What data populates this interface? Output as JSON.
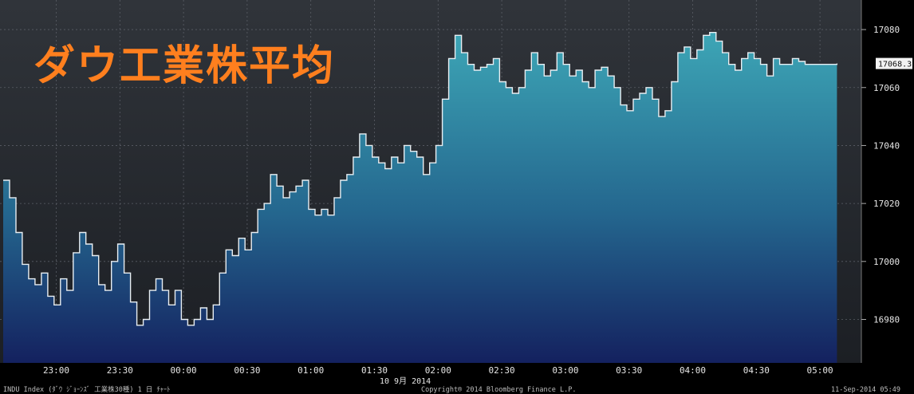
{
  "title": "ダウ工業株平均",
  "footer": {
    "left": "INDU Index (ﾀﾞｳ ｼﾞｮｰﾝｽﾞ 工業株30種) 1 日 ﾁｬｰﾄ",
    "center": "Copyright® 2014 Bloomberg Finance L.P.",
    "right": "11-Sep-2014 05:49",
    "date_label": "10 9月 2014"
  },
  "colors": {
    "title": "#ff7f1e",
    "line": "#e8eef2",
    "fill_top": "#3da6b6",
    "fill_bottom": "#14215f",
    "background": "#2c3036"
  },
  "chart_data": {
    "type": "area",
    "x_unit": "time (hh:mm)",
    "x_start": "22:35",
    "x_end": "05:15",
    "x_tick_labels": [
      "23:00",
      "23:30",
      "00:00",
      "00:30",
      "01:00",
      "01:30",
      "02:00",
      "02:30",
      "03:00",
      "03:30",
      "04:00",
      "04:30",
      "05:00"
    ],
    "ylim": [
      16965,
      17088
    ],
    "y_ticks": [
      16980,
      17000,
      17020,
      17040,
      17060,
      17080
    ],
    "last_value_label": "17068.3",
    "grid": true,
    "points": [
      [
        "22:35",
        17028
      ],
      [
        "22:38",
        17022
      ],
      [
        "22:41",
        17010
      ],
      [
        "22:44",
        16999
      ],
      [
        "22:47",
        16994
      ],
      [
        "22:50",
        16992
      ],
      [
        "22:53",
        16996
      ],
      [
        "22:56",
        16988
      ],
      [
        "22:59",
        16985
      ],
      [
        "23:02",
        16994
      ],
      [
        "23:05",
        16990
      ],
      [
        "23:08",
        17003
      ],
      [
        "23:11",
        17010
      ],
      [
        "23:14",
        17006
      ],
      [
        "23:17",
        17002
      ],
      [
        "23:20",
        16992
      ],
      [
        "23:23",
        16990
      ],
      [
        "23:26",
        17000
      ],
      [
        "23:29",
        17006
      ],
      [
        "23:32",
        16996
      ],
      [
        "23:35",
        16986
      ],
      [
        "23:38",
        16978
      ],
      [
        "23:41",
        16980
      ],
      [
        "23:44",
        16990
      ],
      [
        "23:47",
        16994
      ],
      [
        "23:50",
        16990
      ],
      [
        "23:53",
        16985
      ],
      [
        "23:56",
        16990
      ],
      [
        "23:59",
        16980
      ],
      [
        "00:02",
        16978
      ],
      [
        "00:05",
        16980
      ],
      [
        "00:08",
        16984
      ],
      [
        "00:11",
        16980
      ],
      [
        "00:14",
        16985
      ],
      [
        "00:17",
        16996
      ],
      [
        "00:20",
        17004
      ],
      [
        "00:23",
        17002
      ],
      [
        "00:26",
        17008
      ],
      [
        "00:29",
        17004
      ],
      [
        "00:32",
        17010
      ],
      [
        "00:35",
        17018
      ],
      [
        "00:38",
        17020
      ],
      [
        "00:41",
        17030
      ],
      [
        "00:44",
        17026
      ],
      [
        "00:47",
        17022
      ],
      [
        "00:50",
        17024
      ],
      [
        "00:53",
        17026
      ],
      [
        "00:56",
        17028
      ],
      [
        "00:59",
        17018
      ],
      [
        "01:02",
        17016
      ],
      [
        "01:05",
        17018
      ],
      [
        "01:08",
        17016
      ],
      [
        "01:11",
        17022
      ],
      [
        "01:14",
        17028
      ],
      [
        "01:17",
        17030
      ],
      [
        "01:20",
        17036
      ],
      [
        "01:23",
        17044
      ],
      [
        "01:26",
        17040
      ],
      [
        "01:29",
        17036
      ],
      [
        "01:32",
        17034
      ],
      [
        "01:35",
        17032
      ],
      [
        "01:38",
        17036
      ],
      [
        "01:41",
        17034
      ],
      [
        "01:44",
        17040
      ],
      [
        "01:47",
        17038
      ],
      [
        "01:50",
        17036
      ],
      [
        "01:53",
        17030
      ],
      [
        "01:56",
        17034
      ],
      [
        "01:59",
        17040
      ],
      [
        "02:02",
        17056
      ],
      [
        "02:05",
        17070
      ],
      [
        "02:08",
        17078
      ],
      [
        "02:11",
        17072
      ],
      [
        "02:14",
        17068
      ],
      [
        "02:17",
        17066
      ],
      [
        "02:20",
        17067
      ],
      [
        "02:23",
        17068
      ],
      [
        "02:26",
        17070
      ],
      [
        "02:29",
        17062
      ],
      [
        "02:32",
        17060
      ],
      [
        "02:35",
        17058
      ],
      [
        "02:38",
        17060
      ],
      [
        "02:41",
        17066
      ],
      [
        "02:44",
        17072
      ],
      [
        "02:47",
        17068
      ],
      [
        "02:50",
        17064
      ],
      [
        "02:53",
        17066
      ],
      [
        "02:56",
        17072
      ],
      [
        "02:59",
        17068
      ],
      [
        "03:02",
        17064
      ],
      [
        "03:05",
        17066
      ],
      [
        "03:08",
        17062
      ],
      [
        "03:11",
        17060
      ],
      [
        "03:14",
        17066
      ],
      [
        "03:17",
        17067
      ],
      [
        "03:20",
        17064
      ],
      [
        "03:23",
        17060
      ],
      [
        "03:26",
        17054
      ],
      [
        "03:29",
        17052
      ],
      [
        "03:32",
        17056
      ],
      [
        "03:35",
        17058
      ],
      [
        "03:38",
        17060
      ],
      [
        "03:41",
        17056
      ],
      [
        "03:44",
        17050
      ],
      [
        "03:47",
        17052
      ],
      [
        "03:50",
        17062
      ],
      [
        "03:53",
        17072
      ],
      [
        "03:56",
        17074
      ],
      [
        "03:59",
        17070
      ],
      [
        "04:02",
        17073
      ],
      [
        "04:05",
        17078
      ],
      [
        "04:08",
        17079
      ],
      [
        "04:11",
        17076
      ],
      [
        "04:14",
        17072
      ],
      [
        "04:17",
        17068
      ],
      [
        "04:20",
        17066
      ],
      [
        "04:23",
        17070
      ],
      [
        "04:26",
        17072
      ],
      [
        "04:29",
        17070
      ],
      [
        "04:32",
        17068
      ],
      [
        "04:35",
        17064
      ],
      [
        "04:38",
        17070
      ],
      [
        "04:41",
        17068
      ],
      [
        "04:44",
        17068
      ],
      [
        "04:47",
        17070
      ],
      [
        "04:50",
        17069
      ],
      [
        "04:53",
        17068
      ],
      [
        "04:56",
        17068
      ],
      [
        "04:59",
        17068
      ],
      [
        "05:02",
        17068
      ],
      [
        "05:05",
        17068
      ],
      [
        "05:08",
        17068.3
      ]
    ]
  }
}
